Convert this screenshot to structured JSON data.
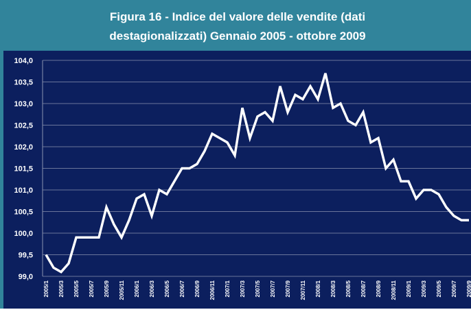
{
  "chart_data": {
    "type": "line",
    "title": [
      "Figura  16 - Indice del valore delle vendite (dati",
      "destagionalizzati) Gennaio 2005 - ottobre 2009"
    ],
    "categories": [
      "2005/1",
      null,
      "2005/3",
      null,
      "2005/5",
      null,
      "2005/7",
      null,
      "2005/9",
      null,
      "2005/11",
      null,
      "2006/1",
      null,
      "2006/3",
      null,
      "2006/5",
      null,
      "2006/7",
      null,
      "2006/9",
      null,
      "2006/11",
      null,
      "2007/1",
      null,
      "2007/3",
      null,
      "2007/5",
      null,
      "2007/7",
      null,
      "2007/9",
      null,
      "2007/11",
      null,
      "2008/1",
      null,
      "2008/3",
      null,
      "2008/5",
      null,
      "2008/7",
      null,
      "2008/9",
      null,
      "2008/11",
      null,
      "2009/1",
      null,
      "2009/3",
      null,
      "2009/5",
      null,
      "2009/7",
      null,
      "2009/9"
    ],
    "series": [
      {
        "color": "#ffffff",
        "values": [
          99.5,
          99.2,
          99.1,
          99.3,
          99.9,
          99.9,
          99.9,
          99.9,
          100.6,
          100.2,
          99.9,
          100.3,
          100.8,
          100.9,
          100.4,
          101.0,
          100.9,
          101.2,
          101.5,
          101.5,
          101.6,
          101.9,
          102.3,
          102.2,
          102.1,
          101.8,
          102.9,
          102.2,
          102.7,
          102.8,
          102.6,
          103.4,
          102.8,
          103.2,
          103.1,
          103.4,
          103.1,
          103.7,
          102.9,
          103.0,
          102.6,
          102.5,
          102.8,
          102.1,
          102.2,
          101.5,
          101.7,
          101.2,
          101.2,
          100.8,
          101.0,
          101.0,
          100.9,
          100.6,
          100.4,
          100.3,
          100.3
        ]
      }
    ],
    "ylim": [
      99,
      104
    ],
    "yticks": [
      {
        "value": 99,
        "label": "99,0"
      },
      {
        "value": 99.5,
        "label": "99,5"
      },
      {
        "value": 100,
        "label": "100,0"
      },
      {
        "value": 100.5,
        "label": "100,5"
      },
      {
        "value": 101,
        "label": "101,0"
      },
      {
        "value": 101.5,
        "label": "101,5"
      },
      {
        "value": 102,
        "label": "102,0"
      },
      {
        "value": 102.5,
        "label": "102,5"
      },
      {
        "value": 103,
        "label": "103,0"
      },
      {
        "value": 103.5,
        "label": "103,5"
      },
      {
        "value": 104,
        "label": "104,0"
      }
    ],
    "grid": true
  }
}
